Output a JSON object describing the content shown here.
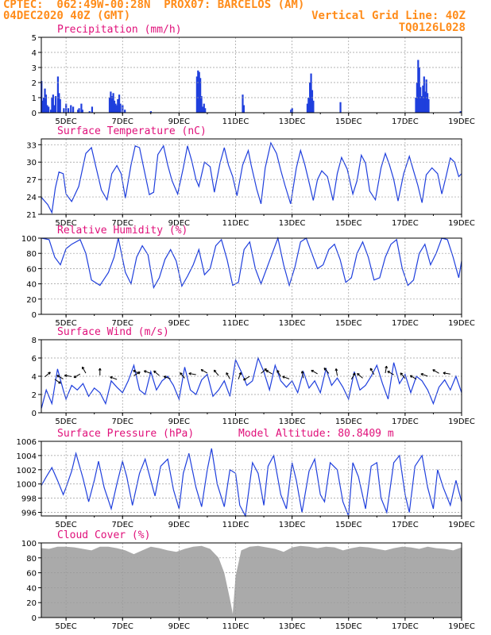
{
  "header": {
    "left1": "CPTEC:  062:49W-00:28N  PROX07: BARCELOS (AM)",
    "left2": "04DEC2020 40Z (GMT)",
    "right2": "Vertical Grid Line: 40Z",
    "right3": "TQ0126L028"
  },
  "colors": {
    "header": "#ff8c1a",
    "title": "#e0107a",
    "line": "#1f3fdd",
    "bars": "#1f3fdd",
    "cloud": "#aaaaaa",
    "grid": "#9a9a9a"
  },
  "xaxis": {
    "start_day": 4.125,
    "end_day": 19,
    "ticks": [
      "5DEC",
      "7DEC",
      "9DEC",
      "11DEC",
      "13DEC",
      "15DEC",
      "17DEC",
      "19DEC"
    ],
    "tick_days": [
      5,
      7,
      9,
      11,
      13,
      15,
      17,
      19
    ]
  },
  "chart_data": [
    {
      "type": "bar",
      "title": "Precipitation (mm/h)",
      "ylim": [
        0,
        5
      ],
      "yticks": [
        0,
        1,
        2,
        3,
        4,
        5
      ],
      "series": [
        {
          "x": [
            4.13,
            4.17,
            4.21,
            4.25,
            4.29,
            4.33,
            4.38,
            4.46,
            4.5,
            4.54,
            4.58,
            4.63,
            4.71,
            4.75,
            4.79,
            4.92,
            5.0,
            5.08,
            5.17,
            5.25,
            5.42,
            5.46,
            5.54,
            5.58,
            5.83,
            5.92,
            6.54,
            6.58,
            6.63,
            6.67,
            6.71,
            6.75,
            6.79,
            6.83,
            6.88,
            6.92,
            7.0,
            7.08,
            8.0,
            9.63,
            9.67,
            9.71,
            9.75,
            9.79,
            9.83,
            9.88,
            9.92,
            11.25,
            11.29,
            12.96,
            13.0,
            13.54,
            13.58,
            13.63,
            13.67,
            13.71,
            13.75,
            14.71,
            17.38,
            17.42,
            17.46,
            17.5,
            17.54,
            17.58,
            17.63,
            17.67,
            17.71,
            17.75,
            17.79,
            17.83,
            18.96
          ],
          "values": [
            2.1,
            0.8,
            1.0,
            1.6,
            1.2,
            0.5,
            0.4,
            0.2,
            1.0,
            1.2,
            0.5,
            1.1,
            2.4,
            1.3,
            0.9,
            0.3,
            0.6,
            0.3,
            0.5,
            0.4,
            0.2,
            0.3,
            0.6,
            0.2,
            0.1,
            0.4,
            1.0,
            1.4,
            1.1,
            1.3,
            0.8,
            0.6,
            0.5,
            0.9,
            1.2,
            0.6,
            0.5,
            0.2,
            0.1,
            2.4,
            2.8,
            2.7,
            2.3,
            1.1,
            0.4,
            0.6,
            0.3,
            1.2,
            0.5,
            0.2,
            0.3,
            0.6,
            1.0,
            2.0,
            2.6,
            1.5,
            0.8,
            0.7,
            1.0,
            2.0,
            3.5,
            3.0,
            1.7,
            1.1,
            1.8,
            2.4,
            1.4,
            2.2,
            1.3,
            0.9,
            0.1
          ]
        }
      ]
    },
    {
      "type": "line",
      "title": "Surface Temperature (nC)",
      "ylim": [
        21,
        34
      ],
      "yticks": [
        21,
        24,
        27,
        30,
        33
      ],
      "series": [
        {
          "x": [
            4.13,
            4.35,
            4.5,
            4.62,
            4.75,
            4.9,
            5.0,
            5.2,
            5.45,
            5.7,
            5.9,
            6.05,
            6.25,
            6.45,
            6.62,
            6.8,
            6.95,
            7.1,
            7.3,
            7.45,
            7.6,
            7.75,
            7.95,
            8.1,
            8.25,
            8.45,
            8.6,
            8.75,
            8.95,
            9.15,
            9.3,
            9.45,
            9.6,
            9.7,
            9.9,
            10.1,
            10.25,
            10.45,
            10.6,
            10.75,
            10.9,
            11.05,
            11.25,
            11.45,
            11.55,
            11.75,
            11.9,
            12.05,
            12.25,
            12.45,
            12.6,
            12.75,
            12.95,
            13.15,
            13.3,
            13.45,
            13.6,
            13.75,
            13.9,
            14.05,
            14.25,
            14.45,
            14.6,
            14.75,
            14.95,
            15.15,
            15.3,
            15.45,
            15.6,
            15.75,
            15.95,
            16.15,
            16.3,
            16.45,
            16.6,
            16.75,
            16.95,
            17.15,
            17.3,
            17.45,
            17.6,
            17.75,
            17.95,
            18.15,
            18.3,
            18.45,
            18.6,
            18.75,
            18.9,
            19.0
          ],
          "values": [
            23.9,
            22.7,
            21.3,
            25.5,
            28.3,
            28.0,
            24.5,
            23.2,
            25.8,
            31.5,
            32.5,
            29.3,
            25.2,
            23.5,
            28.0,
            29.4,
            28.0,
            23.8,
            29.5,
            32.8,
            32.5,
            29.0,
            24.4,
            24.8,
            31.3,
            32.8,
            29.5,
            26.8,
            24.5,
            29.0,
            32.8,
            30.2,
            27.0,
            25.8,
            30.0,
            29.2,
            24.8,
            29.8,
            32.5,
            29.5,
            27.5,
            24.2,
            29.5,
            32.0,
            29.5,
            25.3,
            22.8,
            29.0,
            33.3,
            31.5,
            28.6,
            26.0,
            22.8,
            29.0,
            32.0,
            29.6,
            26.5,
            23.4,
            27.0,
            28.5,
            27.5,
            23.4,
            28.0,
            30.8,
            28.8,
            24.5,
            26.8,
            31.2,
            29.8,
            25.0,
            23.5,
            29.0,
            31.5,
            29.5,
            27.0,
            23.3,
            28.0,
            31.0,
            28.5,
            26.0,
            23.0,
            27.8,
            29.0,
            28.0,
            24.5,
            27.5,
            30.7,
            30.0,
            27.5,
            28.0
          ]
        }
      ]
    },
    {
      "type": "line",
      "title": "Relative Humidity (%)",
      "ylim": [
        0,
        100
      ],
      "yticks": [
        0,
        20,
        40,
        60,
        80,
        100
      ],
      "series": [
        {
          "x": [
            4.13,
            4.4,
            4.6,
            4.8,
            5.0,
            5.2,
            5.5,
            5.7,
            5.9,
            6.2,
            6.5,
            6.7,
            6.85,
            7.1,
            7.3,
            7.5,
            7.7,
            7.9,
            8.1,
            8.3,
            8.5,
            8.7,
            8.9,
            9.1,
            9.3,
            9.5,
            9.7,
            9.9,
            10.1,
            10.3,
            10.5,
            10.7,
            10.9,
            11.1,
            11.3,
            11.5,
            11.7,
            11.9,
            12.1,
            12.3,
            12.5,
            12.7,
            12.9,
            13.1,
            13.3,
            13.5,
            13.7,
            13.9,
            14.1,
            14.3,
            14.5,
            14.7,
            14.9,
            15.1,
            15.3,
            15.5,
            15.7,
            15.9,
            16.1,
            16.3,
            16.5,
            16.7,
            16.9,
            17.1,
            17.3,
            17.5,
            17.7,
            17.9,
            18.1,
            18.3,
            18.5,
            18.7,
            18.9,
            19.0
          ],
          "values": [
            100,
            98,
            75,
            65,
            86,
            92,
            98,
            80,
            45,
            38,
            55,
            75,
            100,
            55,
            40,
            75,
            90,
            78,
            35,
            48,
            72,
            85,
            70,
            37,
            50,
            65,
            85,
            52,
            60,
            90,
            98,
            72,
            38,
            42,
            85,
            95,
            60,
            40,
            60,
            80,
            100,
            65,
            38,
            62,
            95,
            100,
            80,
            60,
            65,
            85,
            92,
            72,
            42,
            48,
            80,
            95,
            75,
            45,
            48,
            75,
            92,
            98,
            60,
            38,
            45,
            80,
            92,
            65,
            80,
            100,
            98,
            75,
            48,
            70
          ]
        }
      ]
    },
    {
      "type": "line",
      "title": "Surface Wind (m/s)",
      "ylim": [
        0,
        8
      ],
      "yticks": [
        0,
        2,
        4,
        6,
        8
      ],
      "series": [
        {
          "x": [
            4.13,
            4.3,
            4.5,
            4.7,
            4.9,
            5.0,
            5.2,
            5.4,
            5.6,
            5.8,
            6.0,
            6.2,
            6.4,
            6.6,
            6.8,
            7.0,
            7.2,
            7.4,
            7.6,
            7.8,
            8.0,
            8.2,
            8.4,
            8.6,
            8.8,
            9.0,
            9.2,
            9.4,
            9.6,
            9.8,
            10.0,
            10.2,
            10.4,
            10.6,
            10.8,
            11.0,
            11.2,
            11.4,
            11.6,
            11.8,
            12.0,
            12.2,
            12.4,
            12.6,
            12.8,
            13.0,
            13.2,
            13.4,
            13.6,
            13.8,
            14.0,
            14.2,
            14.4,
            14.6,
            14.8,
            15.0,
            15.2,
            15.4,
            15.6,
            15.8,
            16.0,
            16.2,
            16.4,
            16.6,
            16.8,
            17.0,
            17.2,
            17.4,
            17.6,
            17.8,
            18.0,
            18.2,
            18.4,
            18.6,
            18.8,
            19.0
          ],
          "values": [
            0.5,
            2.5,
            1.0,
            4.8,
            2.5,
            1.5,
            3.0,
            2.5,
            3.2,
            1.8,
            2.7,
            2.2,
            1.0,
            3.5,
            2.8,
            2.2,
            3.5,
            5.2,
            2.5,
            2.0,
            4.5,
            2.5,
            3.5,
            4.0,
            3.0,
            1.5,
            5.0,
            2.5,
            2.0,
            3.6,
            4.2,
            1.8,
            2.5,
            3.5,
            1.8,
            5.8,
            4.5,
            3.0,
            3.5,
            6.0,
            4.5,
            2.5,
            5.2,
            3.5,
            2.8,
            3.5,
            2.2,
            4.5,
            2.7,
            3.5,
            2.2,
            4.8,
            3.0,
            3.8,
            2.8,
            1.5,
            4.5,
            2.5,
            3.0,
            4.0,
            5.2,
            3.2,
            1.5,
            5.5,
            3.2,
            4.2,
            2.2,
            4.0,
            3.5,
            2.5,
            1.0,
            2.8,
            3.6,
            2.5,
            4.0,
            2.2
          ]
        }
      ]
    },
    {
      "type": "line",
      "title": "Surface Pressure (hPa)",
      "subtitle": "Model Altitude: 80.8409 m",
      "ylim": [
        995.5,
        1006
      ],
      "yticks": [
        996,
        998,
        1000,
        1002,
        1004,
        1006
      ],
      "series": [
        {
          "x": [
            4.13,
            4.3,
            4.5,
            4.7,
            4.9,
            5.0,
            5.2,
            5.35,
            5.6,
            5.8,
            6.0,
            6.15,
            6.35,
            6.6,
            6.8,
            7.0,
            7.15,
            7.35,
            7.6,
            7.8,
            8.0,
            8.15,
            8.35,
            8.6,
            8.8,
            9.0,
            9.15,
            9.35,
            9.6,
            9.8,
            10.0,
            10.15,
            10.35,
            10.6,
            10.8,
            11.0,
            11.15,
            11.35,
            11.6,
            11.8,
            12.0,
            12.15,
            12.35,
            12.6,
            12.8,
            13.0,
            13.15,
            13.35,
            13.6,
            13.8,
            14.0,
            14.15,
            14.35,
            14.6,
            14.8,
            15.0,
            15.15,
            15.35,
            15.6,
            15.8,
            16.0,
            16.15,
            16.35,
            16.6,
            16.8,
            17.0,
            17.15,
            17.35,
            17.6,
            17.8,
            18.0,
            18.15,
            18.35,
            18.6,
            18.8,
            19.0
          ],
          "values": [
            999.8,
            1001.0,
            1002.3,
            1000.5,
            998.5,
            999.5,
            1001.8,
            1004.3,
            1000.8,
            997.5,
            1000.5,
            1003.2,
            999.5,
            996.5,
            1000.0,
            1003.2,
            1001.0,
            997.0,
            1001.5,
            1003.5,
            1000.5,
            998.3,
            1002.5,
            1003.5,
            999.2,
            996.5,
            1001.5,
            1004.3,
            999.5,
            996.8,
            1002.0,
            1005.0,
            1000.0,
            996.8,
            1002.0,
            1001.5,
            997.0,
            995.0,
            1003.0,
            1001.5,
            997.0,
            1002.5,
            1004.0,
            998.5,
            996.5,
            1003.0,
            1000.5,
            996.0,
            1001.8,
            1003.5,
            998.5,
            997.5,
            1003.0,
            1002.0,
            997.5,
            995.2,
            1003.0,
            1001.0,
            996.5,
            1002.5,
            1003.0,
            998.0,
            996.0,
            1003.0,
            1004.0,
            998.5,
            996.0,
            1002.5,
            1004.0,
            999.5,
            996.5,
            1002.0,
            999.5,
            997.0,
            1000.5,
            997.5
          ]
        }
      ]
    },
    {
      "type": "bar",
      "title": "Cloud Cover (%)",
      "ylim": [
        0,
        100
      ],
      "yticks": [
        0,
        20,
        40,
        60,
        80,
        100
      ],
      "series": [
        {
          "x": [
            4.13,
            4.4,
            4.7,
            5.0,
            5.3,
            5.6,
            5.9,
            6.2,
            6.5,
            6.8,
            7.1,
            7.4,
            7.7,
            8.0,
            8.3,
            8.6,
            8.9,
            9.2,
            9.5,
            9.8,
            10.1,
            10.4,
            10.6,
            10.8,
            10.9,
            11.0,
            11.2,
            11.5,
            11.8,
            12.1,
            12.4,
            12.7,
            13.0,
            13.3,
            13.6,
            13.9,
            14.2,
            14.5,
            14.8,
            15.1,
            15.4,
            15.7,
            16.0,
            16.3,
            16.6,
            16.9,
            17.2,
            17.5,
            17.8,
            18.1,
            18.4,
            18.7,
            19.0
          ],
          "values": [
            93,
            92,
            95,
            95,
            94,
            92,
            90,
            95,
            95,
            93,
            90,
            85,
            90,
            95,
            93,
            90,
            88,
            92,
            95,
            96,
            92,
            80,
            60,
            25,
            5,
            55,
            90,
            95,
            96,
            94,
            92,
            88,
            94,
            96,
            95,
            93,
            95,
            94,
            90,
            93,
            95,
            94,
            92,
            90,
            93,
            95,
            94,
            92,
            95,
            93,
            92,
            90,
            94
          ]
        }
      ],
      "annotations": [
        "Vertical Grid Line: 40Z"
      ]
    }
  ]
}
